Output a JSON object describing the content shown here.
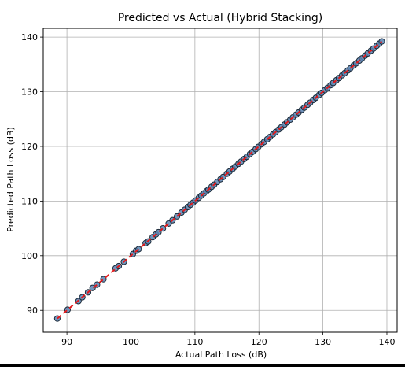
{
  "chart_data": {
    "type": "scatter",
    "title": "Predicted vs Actual (Hybrid Stacking)",
    "xlabel": "Actual Path Loss (dB)",
    "ylabel": "Predicted Path Loss (dB)",
    "xlim": [
      86.3,
      141.6
    ],
    "ylim": [
      86,
      141.6
    ],
    "xticks": [
      90,
      100,
      110,
      120,
      130,
      140
    ],
    "yticks": [
      90,
      100,
      110,
      120,
      130,
      140
    ],
    "grid": true,
    "colors": {
      "point_fill": "#5b84b1",
      "point_edge": "#1c2b3a",
      "reference_line": "#e31a1c"
    },
    "reference_line": {
      "from": [
        88.5,
        88.5
      ],
      "to": [
        139.2,
        139.2
      ],
      "style": "dashed"
    },
    "series": [
      {
        "x": [
          88.5,
          90.1,
          91.8,
          92.4,
          93.3,
          94.0,
          94.7,
          95.7,
          97.6,
          98.1,
          98.9,
          100.3,
          100.8,
          101.2,
          102.3,
          102.7,
          103.4,
          103.9,
          104.3,
          105.0,
          105.9,
          106.5,
          107.2,
          107.9,
          108.4,
          108.9,
          109.3,
          109.7,
          110.1,
          110.6,
          111.0,
          111.4,
          111.8,
          112.1,
          112.6,
          113.0,
          113.5,
          114.0,
          114.4,
          115.0,
          115.4,
          115.9,
          116.3,
          116.8,
          117.2,
          117.7,
          118.1,
          118.6,
          119.0,
          119.5,
          119.9,
          120.4,
          120.8,
          121.3,
          121.7,
          122.2,
          122.6,
          123.1,
          123.5,
          124.0,
          124.4,
          124.9,
          125.3,
          125.8,
          126.2,
          126.7,
          127.1,
          127.6,
          128.0,
          128.5,
          128.9,
          129.4,
          129.8,
          130.3,
          130.7,
          131.2,
          131.6,
          132.1,
          132.5,
          133.0,
          133.4,
          133.9,
          134.3,
          134.8,
          135.2,
          135.7,
          136.1,
          136.6,
          137.0,
          137.5,
          137.9,
          138.4,
          138.8,
          139.2
        ],
        "y": [
          88.5,
          90.1,
          91.7,
          92.4,
          93.3,
          94.1,
          94.7,
          95.7,
          97.7,
          98.1,
          98.9,
          100.3,
          100.9,
          101.2,
          102.3,
          102.6,
          103.4,
          103.9,
          104.3,
          105.0,
          105.9,
          106.5,
          107.2,
          107.9,
          108.4,
          108.9,
          109.3,
          109.7,
          110.1,
          110.6,
          111.0,
          111.4,
          111.8,
          112.1,
          112.6,
          113.0,
          113.5,
          114.0,
          114.4,
          115.0,
          115.4,
          115.9,
          116.3,
          116.8,
          117.2,
          117.7,
          118.1,
          118.6,
          119.0,
          119.5,
          119.9,
          120.4,
          120.8,
          121.3,
          121.7,
          122.2,
          122.6,
          123.1,
          123.5,
          124.0,
          124.4,
          124.9,
          125.3,
          125.8,
          126.2,
          126.7,
          127.1,
          127.6,
          128.0,
          128.5,
          128.9,
          129.4,
          129.8,
          130.3,
          130.7,
          131.2,
          131.6,
          132.1,
          132.5,
          133.0,
          133.4,
          133.9,
          134.3,
          134.8,
          135.2,
          135.7,
          136.1,
          136.6,
          137.0,
          137.5,
          137.9,
          138.4,
          138.8,
          139.2
        ]
      }
    ]
  }
}
